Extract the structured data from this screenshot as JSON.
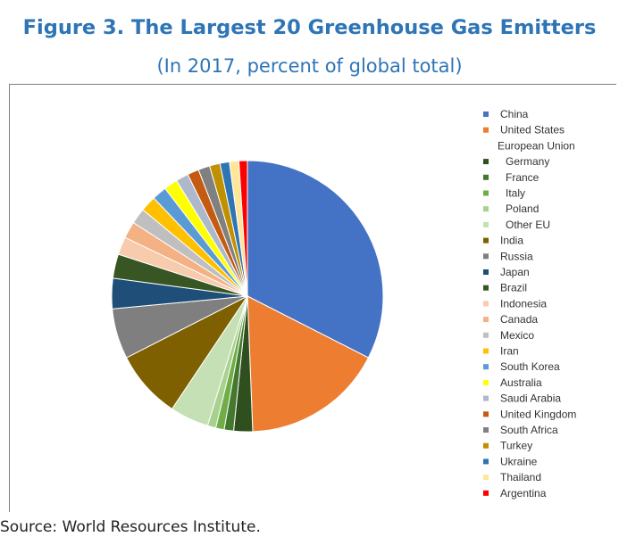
{
  "figure": {
    "title": "Figure 3. The Largest 20 Greenhouse Gas Emitters",
    "subtitle": "(In 2017, percent of global total)",
    "source": "Source: World Resources Institute."
  },
  "chart_data": {
    "type": "pie",
    "start_angle_deg": 0,
    "direction": "clockwise",
    "group_label": "EU",
    "slices": [
      {
        "label": "China",
        "value": 26.0,
        "color": "#4472c4"
      },
      {
        "label": "United States",
        "value": 13.5,
        "color": "#ed7d31"
      },
      {
        "label": "Germany",
        "value": 1.8,
        "color": "#2f4f1e"
      },
      {
        "label": "France",
        "value": 0.9,
        "color": "#43782e"
      },
      {
        "label": "Italy",
        "value": 0.8,
        "color": "#70ad47"
      },
      {
        "label": "Poland",
        "value": 0.8,
        "color": "#a9d18e"
      },
      {
        "label": "Other EU",
        "value": 3.7,
        "color": "#c5e0b4"
      },
      {
        "label": "India",
        "value": 6.5,
        "color": "#7f6000"
      },
      {
        "label": "Russia",
        "value": 4.8,
        "color": "#7f7f7f"
      },
      {
        "label": "Japan",
        "value": 2.9,
        "color": "#1f4e79"
      },
      {
        "label": "Brazil",
        "value": 2.3,
        "color": "#375623"
      },
      {
        "label": "Indonesia",
        "value": 1.7,
        "color": "#f8cbad"
      },
      {
        "label": "Canada",
        "value": 1.6,
        "color": "#f4b183"
      },
      {
        "label": "Mexico",
        "value": 1.5,
        "color": "#bfbfbf"
      },
      {
        "label": "Iran",
        "value": 1.5,
        "color": "#ffc000"
      },
      {
        "label": "South Korea",
        "value": 1.4,
        "color": "#5b9bd5"
      },
      {
        "label": "Australia",
        "value": 1.3,
        "color": "#ffff00"
      },
      {
        "label": "Saudi Arabia",
        "value": 1.2,
        "color": "#adb9ca"
      },
      {
        "label": "United Kingdom",
        "value": 1.1,
        "color": "#c55a11"
      },
      {
        "label": "South Africa",
        "value": 1.1,
        "color": "#808080"
      },
      {
        "label": "Turkey",
        "value": 1.0,
        "color": "#bf9000"
      },
      {
        "label": "Ukraine",
        "value": 0.9,
        "color": "#2e75b6"
      },
      {
        "label": "Thailand",
        "value": 0.9,
        "color": "#ffe699"
      },
      {
        "label": "Argentina",
        "value": 0.8,
        "color": "#ff0000"
      }
    ],
    "legend": {
      "position": "right",
      "items": [
        {
          "label": "China",
          "color": "#4472c4",
          "indent": false,
          "marker": true
        },
        {
          "label": "United States",
          "color": "#ed7d31",
          "indent": false,
          "marker": true
        },
        {
          "label": "European Union",
          "color": "",
          "indent": false,
          "marker": false
        },
        {
          "label": "Germany",
          "color": "#2f4f1e",
          "indent": true,
          "marker": true
        },
        {
          "label": "France",
          "color": "#43782e",
          "indent": true,
          "marker": true
        },
        {
          "label": "Italy",
          "color": "#70ad47",
          "indent": true,
          "marker": true
        },
        {
          "label": "Poland",
          "color": "#a9d18e",
          "indent": true,
          "marker": true
        },
        {
          "label": "Other EU",
          "color": "#c5e0b4",
          "indent": true,
          "marker": true
        },
        {
          "label": "India",
          "color": "#7f6000",
          "indent": false,
          "marker": true
        },
        {
          "label": "Russia",
          "color": "#7f7f7f",
          "indent": false,
          "marker": true
        },
        {
          "label": "Japan",
          "color": "#1f4e79",
          "indent": false,
          "marker": true
        },
        {
          "label": "Brazil",
          "color": "#375623",
          "indent": false,
          "marker": true
        },
        {
          "label": "Indonesia",
          "color": "#f8cbad",
          "indent": false,
          "marker": true
        },
        {
          "label": "Canada",
          "color": "#f4b183",
          "indent": false,
          "marker": true
        },
        {
          "label": "Mexico",
          "color": "#bfbfbf",
          "indent": false,
          "marker": true
        },
        {
          "label": "Iran",
          "color": "#ffc000",
          "indent": false,
          "marker": true
        },
        {
          "label": "South Korea",
          "color": "#5b9bd5",
          "indent": false,
          "marker": true
        },
        {
          "label": "Australia",
          "color": "#ffff00",
          "indent": false,
          "marker": true
        },
        {
          "label": "Saudi Arabia",
          "color": "#adb9ca",
          "indent": false,
          "marker": true
        },
        {
          "label": "United Kingdom",
          "color": "#c55a11",
          "indent": false,
          "marker": true
        },
        {
          "label": "South Africa",
          "color": "#808080",
          "indent": false,
          "marker": true
        },
        {
          "label": "Turkey",
          "color": "#bf9000",
          "indent": false,
          "marker": true
        },
        {
          "label": "Ukraine",
          "color": "#2e75b6",
          "indent": false,
          "marker": true
        },
        {
          "label": "Thailand",
          "color": "#ffe699",
          "indent": false,
          "marker": true
        },
        {
          "label": "Argentina",
          "color": "#ff0000",
          "indent": false,
          "marker": true
        }
      ]
    }
  }
}
